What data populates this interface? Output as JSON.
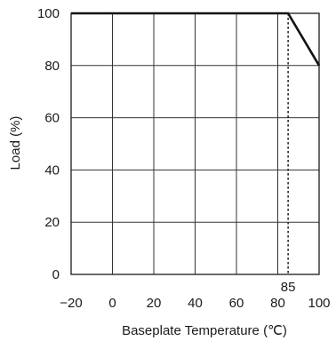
{
  "chart_data": {
    "type": "line",
    "xlabel": "Baseplate Temperature (℃)",
    "ylabel": "Load (%)",
    "xlim": [
      -20,
      100
    ],
    "ylim": [
      0,
      100
    ],
    "x_ticks": [
      -20,
      0,
      20,
      40,
      60,
      80,
      100
    ],
    "x_tick_labels": [
      "−20",
      "0",
      "20",
      "40",
      "60",
      "80",
      "100"
    ],
    "y_ticks": [
      0,
      20,
      40,
      60,
      80,
      100
    ],
    "y_tick_labels": [
      "0",
      "20",
      "40",
      "60",
      "80",
      "100"
    ],
    "grid": true,
    "series": [
      {
        "x": [
          -20,
          85,
          100
        ],
        "y": [
          100,
          100,
          80
        ]
      }
    ],
    "annotations": [
      {
        "text": "85",
        "x": 85,
        "style": "dotted vertical reference line"
      }
    ]
  }
}
